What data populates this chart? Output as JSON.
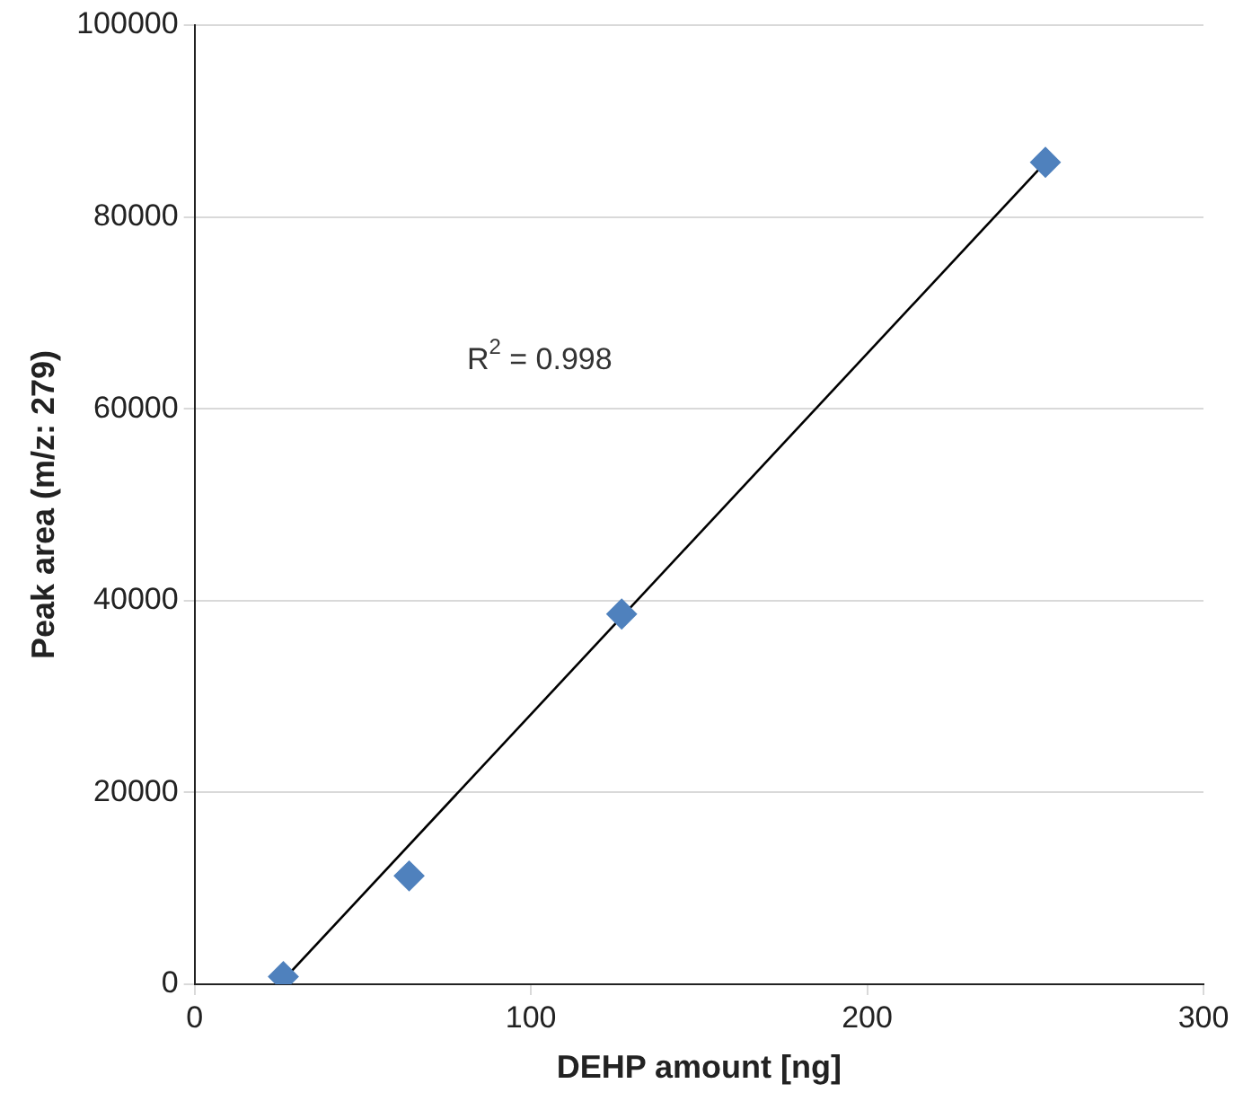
{
  "chart_data": {
    "type": "scatter",
    "xlabel": "DEHP amount [ng]",
    "ylabel": "Peak area (m/z: 279)",
    "series": [
      {
        "color": "#4f81bd",
        "x": [
          26.4,
          63.8,
          127,
          253
        ],
        "values": [
          800,
          11300,
          38600,
          85700
        ],
        "marker": "diamond"
      },
      {
        "type": "line",
        "color": "#000000",
        "x": [
          25.2,
          254.6
        ],
        "values": [
          0,
          86300
        ],
        "marker": "none",
        "line_style": "solid"
      }
    ],
    "xlim": [
      0,
      300
    ],
    "xticks": [
      0,
      100,
      200,
      300
    ],
    "ylim": [
      0,
      100000
    ],
    "yticks": [
      0,
      20000,
      40000,
      60000,
      80000,
      100000
    ],
    "grid": "y",
    "legend": false,
    "annotations": [
      "R$^{2}$ = 0.998"
    ]
  }
}
